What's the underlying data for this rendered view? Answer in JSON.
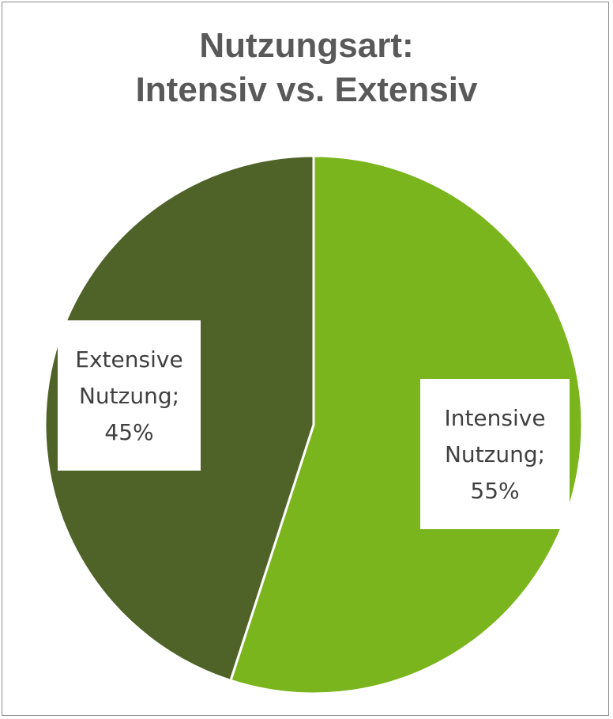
{
  "chart_data": {
    "type": "pie",
    "title_lines": [
      "Nutzungsart:",
      "Intensiv vs. Extensiv"
    ],
    "slices": [
      {
        "name": "Intensive Nutzung",
        "value": 55,
        "label": "55%",
        "color": "#7ab51d"
      },
      {
        "name": "Extensive Nutzung",
        "value": 45,
        "label": "45%",
        "color": "#4f6228"
      }
    ],
    "label_format": "{name}; {label}"
  }
}
